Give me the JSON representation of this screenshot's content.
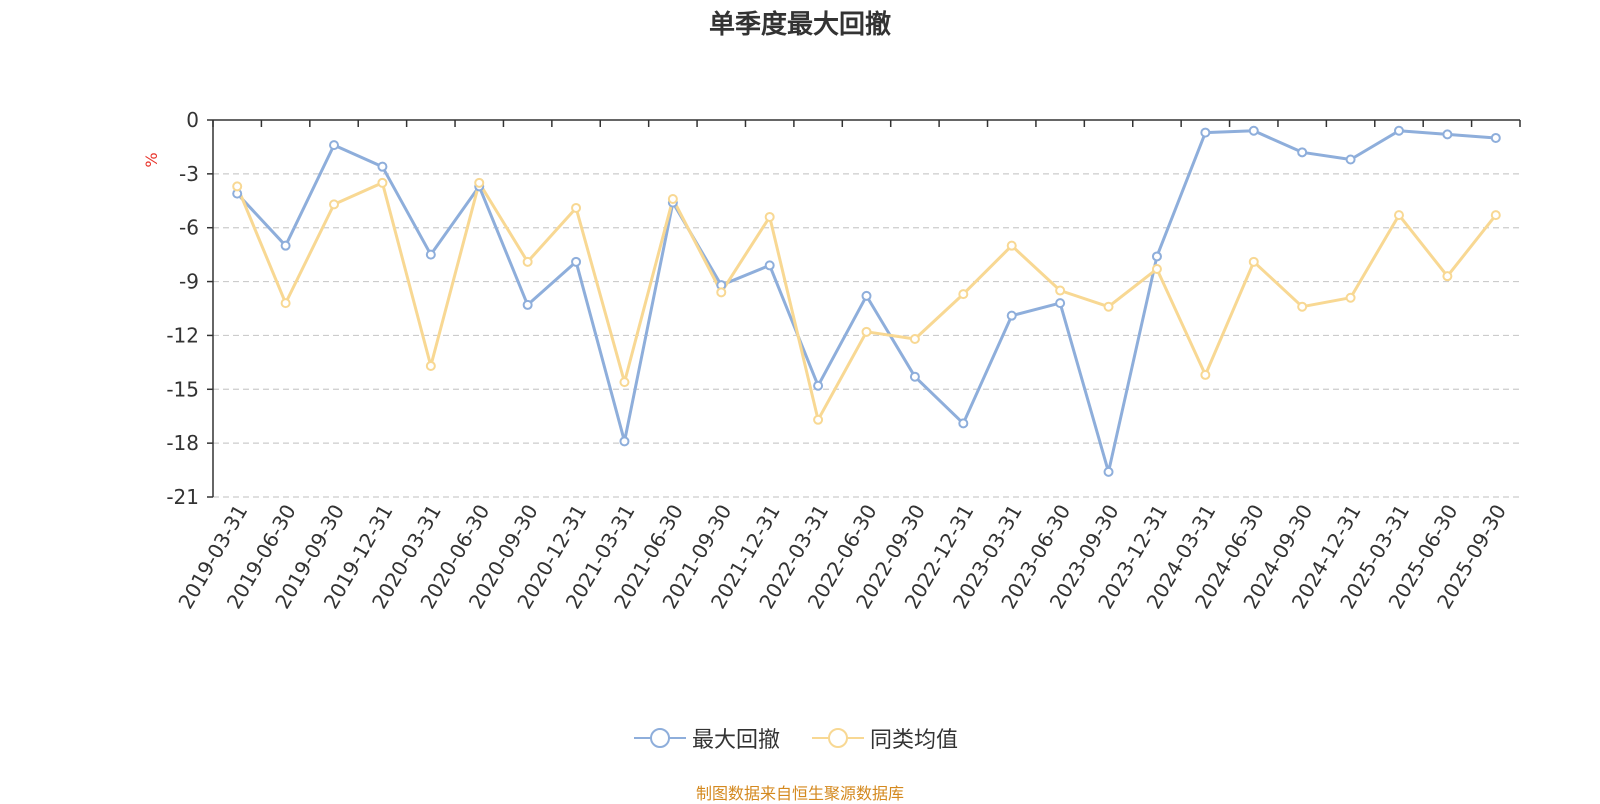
{
  "chart_data": {
    "type": "line",
    "title": "单季度最大回撤",
    "ylabel": "%",
    "ylim": [
      -21,
      0
    ],
    "yticks": [
      0,
      -3,
      -6,
      -9,
      -12,
      -15,
      -18,
      -21
    ],
    "grid": true,
    "legend_position": "bottom",
    "categories": [
      "2019-03-31",
      "2019-06-30",
      "2019-09-30",
      "2019-12-31",
      "2020-03-31",
      "2020-06-30",
      "2020-09-30",
      "2020-12-31",
      "2021-03-31",
      "2021-06-30",
      "2021-09-30",
      "2021-12-31",
      "2022-03-31",
      "2022-06-30",
      "2022-09-30",
      "2022-12-31",
      "2023-03-31",
      "2023-06-30",
      "2023-09-30",
      "2023-12-31",
      "2024-03-31",
      "2024-06-30",
      "2024-09-30",
      "2024-12-31",
      "2025-03-31",
      "2025-06-30",
      "2025-09-30"
    ],
    "series": [
      {
        "name": "最大回撤",
        "color": "#8eaedb",
        "values": [
          -4.1,
          -7.0,
          -1.4,
          -2.6,
          -7.5,
          -3.7,
          -10.3,
          -7.9,
          -17.9,
          -4.6,
          -9.2,
          -8.1,
          -14.8,
          -9.8,
          -14.3,
          -16.9,
          -10.9,
          -10.2,
          -19.6,
          -7.6,
          -0.7,
          -0.6,
          -1.8,
          -2.2,
          -0.6,
          -0.8,
          -1.0
        ]
      },
      {
        "name": "同类均值",
        "color": "#f8d893",
        "values": [
          -3.7,
          -10.2,
          -4.7,
          -3.5,
          -13.7,
          -3.5,
          -7.9,
          -4.9,
          -14.6,
          -4.4,
          -9.6,
          -5.4,
          -16.7,
          -11.8,
          -12.2,
          -9.7,
          -7.0,
          -9.5,
          -10.4,
          -8.3,
          -14.2,
          -7.9,
          -10.4,
          -9.9,
          -5.3,
          -8.7,
          -5.3
        ]
      }
    ]
  },
  "source_note": "制图数据来自恒生聚源数据库"
}
